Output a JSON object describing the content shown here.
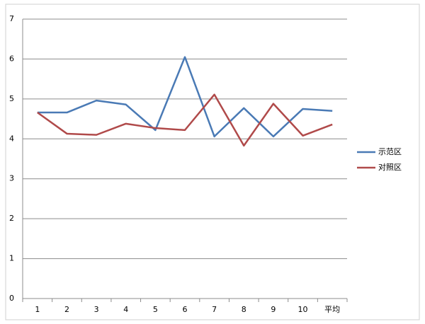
{
  "chart_data": {
    "type": "line",
    "categories": [
      "1",
      "2",
      "3",
      "4",
      "5",
      "6",
      "7",
      "8",
      "9",
      "10",
      "平均"
    ],
    "series": [
      {
        "name": "示范区",
        "color": "#4a7ab5",
        "values": [
          4.66,
          4.66,
          4.96,
          4.86,
          4.22,
          6.05,
          4.06,
          4.77,
          4.06,
          4.75,
          4.7
        ]
      },
      {
        "name": "对照区",
        "color": "#b04a4a",
        "values": [
          4.66,
          4.13,
          4.1,
          4.38,
          4.27,
          4.22,
          5.11,
          3.83,
          4.88,
          4.08,
          4.36
        ]
      }
    ],
    "ylim": [
      0,
      7
    ],
    "yticks": [
      0,
      1,
      2,
      3,
      4,
      5,
      6,
      7
    ],
    "grid": true,
    "legend": "right"
  }
}
